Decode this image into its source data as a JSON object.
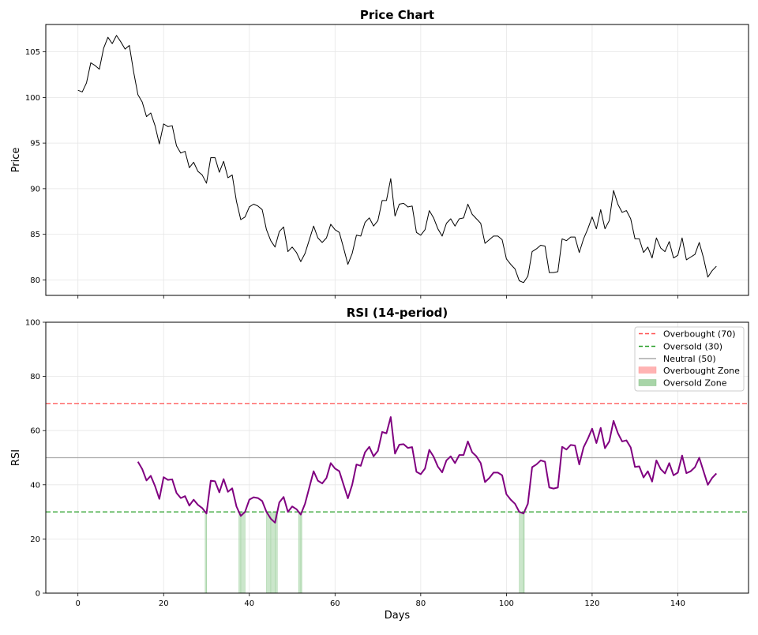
{
  "chart_data": [
    {
      "type": "line",
      "title": "Price Chart",
      "xlabel": "",
      "ylabel": "Price",
      "xlim": [
        -7.5,
        156.5
      ],
      "ylim": [
        78.3,
        108.0
      ],
      "xticks": [
        0,
        20,
        40,
        60,
        80,
        100,
        120,
        140
      ],
      "yticks": [
        80,
        85,
        90,
        95,
        100,
        105
      ],
      "ytick_labels": [
        "80",
        "85",
        "90",
        "95",
        "100",
        "105"
      ],
      "grid": true,
      "series": [
        {
          "color": "#000000",
          "x_start": 0,
          "values": [
            100.8,
            100.6,
            101.6,
            103.8,
            103.5,
            103.1,
            105.4,
            106.6,
            105.9,
            106.8,
            106.1,
            105.3,
            105.7,
            102.8,
            100.3,
            99.5,
            97.9,
            98.3,
            96.9,
            94.9,
            97.1,
            96.8,
            96.9,
            94.7,
            93.9,
            94.1,
            92.3,
            92.9,
            91.9,
            91.5,
            90.6,
            93.4,
            93.4,
            91.8,
            93.0,
            91.2,
            91.5,
            88.6,
            86.6,
            86.9,
            88.0,
            88.3,
            88.1,
            87.7,
            85.5,
            84.3,
            83.6,
            85.3,
            85.8,
            83.1,
            83.6,
            83.0,
            82.0,
            82.9,
            84.4,
            85.9,
            84.6,
            84.1,
            84.6,
            86.1,
            85.5,
            85.2,
            83.5,
            81.7,
            82.9,
            84.9,
            84.8,
            86.3,
            86.8,
            85.9,
            86.5,
            88.7,
            88.7,
            91.1,
            87.0,
            88.3,
            88.4,
            88.0,
            88.1,
            85.2,
            84.9,
            85.5,
            87.6,
            86.8,
            85.6,
            84.8,
            86.2,
            86.7,
            85.9,
            86.7,
            86.8,
            88.3,
            87.2,
            86.7,
            86.2,
            84.0,
            84.4,
            84.8,
            84.8,
            84.4,
            82.3,
            81.7,
            81.2,
            79.9,
            79.7,
            80.4,
            83.1,
            83.4,
            83.8,
            83.7,
            80.8,
            80.8,
            80.9,
            84.5,
            84.3,
            84.7,
            84.7,
            83.0,
            84.5,
            85.6,
            86.9,
            85.6,
            87.7,
            85.6,
            86.5,
            89.8,
            88.3,
            87.4,
            87.6,
            86.7,
            84.5,
            84.5,
            83.0,
            83.6,
            82.4,
            84.6,
            83.5,
            83.1,
            84.2,
            82.4,
            82.7,
            84.6,
            82.2,
            82.5,
            82.8,
            84.1,
            82.4,
            80.3,
            81.0,
            81.5
          ]
        }
      ]
    },
    {
      "type": "line",
      "title": "RSI (14-period)",
      "xlabel": "Days",
      "ylabel": "RSI",
      "xlim": [
        -7.5,
        156.5
      ],
      "ylim": [
        0,
        100
      ],
      "xticks": [
        0,
        20,
        40,
        60,
        80,
        100,
        120,
        140
      ],
      "xtick_labels": [
        "0",
        "20",
        "40",
        "60",
        "80",
        "100",
        "120",
        "140"
      ],
      "yticks": [
        0,
        20,
        40,
        60,
        80,
        100
      ],
      "ytick_labels": [
        "0",
        "20",
        "40",
        "60",
        "80",
        "100"
      ],
      "grid": true,
      "legend_position": "top-right",
      "series": [
        {
          "color": "#800080",
          "x_start": 14,
          "values": [
            48.5,
            45.8,
            41.6,
            43.3,
            39.5,
            34.8,
            42.8,
            41.8,
            42.0,
            37.0,
            35.1,
            35.8,
            32.3,
            34.5,
            32.6,
            31.4,
            29.4,
            41.5,
            41.3,
            37.2,
            42.1,
            37.4,
            38.7,
            32.0,
            28.5,
            30.0,
            34.5,
            35.4,
            35.1,
            34.0,
            30.0,
            27.5,
            26.0,
            33.5,
            35.5,
            30.0,
            32.0,
            31.0,
            29.0,
            33.0,
            39.0,
            45.0,
            41.5,
            40.5,
            42.5,
            48.0,
            46.0,
            45.0,
            40.0,
            35.0,
            40.0,
            47.5,
            47.0,
            52.0,
            54.0,
            50.5,
            52.5,
            59.5,
            59.0,
            65.0,
            51.5,
            54.8,
            55.0,
            53.6,
            53.9,
            44.8,
            43.9,
            46.0,
            52.9,
            50.4,
            46.7,
            44.6,
            49.0,
            50.5,
            48.0,
            51.0,
            51.0,
            56.0,
            52.0,
            50.5,
            48.0,
            41.0,
            42.5,
            44.5,
            44.5,
            43.5,
            36.5,
            34.5,
            33.0,
            30.0,
            29.4,
            33.0,
            46.5,
            47.5,
            49.0,
            48.5,
            39.0,
            38.6,
            39.0,
            54.0,
            53.0,
            54.7,
            54.5,
            47.5,
            53.8,
            57.0,
            60.7,
            55.4,
            61.0,
            53.5,
            56.0,
            63.6,
            59.1,
            56.0,
            56.4,
            53.8,
            46.6,
            46.8,
            42.7,
            45.0,
            41.2,
            49.0,
            45.8,
            44.2,
            48.0,
            43.5,
            44.5,
            50.8,
            44.3,
            45.0,
            46.5,
            50.0,
            45.0,
            40.0,
            42.5,
            44.2
          ]
        }
      ],
      "reference_lines": [
        {
          "name": "Overbought (70)",
          "y": 70,
          "color": "#ff4d4d",
          "style": "dashed"
        },
        {
          "name": "Oversold (30)",
          "y": 30,
          "color": "#2ca02c",
          "style": "dashed"
        },
        {
          "name": "Neutral (50)",
          "y": 50,
          "color": "#aaaaaa",
          "style": "solid"
        }
      ],
      "zones": [
        {
          "name": "Overbought Zone",
          "color": "#ffb3b3",
          "above": 70
        },
        {
          "name": "Oversold Zone",
          "color": "#a8d5a8",
          "below": 30
        }
      ]
    }
  ]
}
